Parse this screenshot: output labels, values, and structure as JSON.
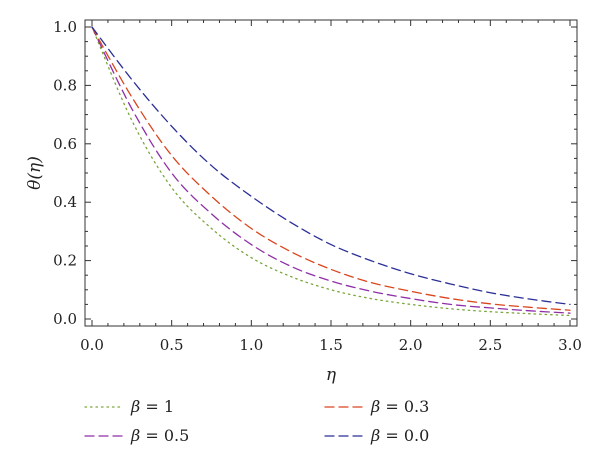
{
  "chart_data": {
    "type": "line",
    "xlabel": "η",
    "ylabel": "θ(η)",
    "xlim": [
      0.0,
      3.0
    ],
    "ylim": [
      0.0,
      1.0
    ],
    "xticks": [
      "0.0",
      "0.5",
      "1.0",
      "1.5",
      "2.0",
      "2.5",
      "3.0"
    ],
    "yticks": [
      "0.0",
      "0.2",
      "0.4",
      "0.6",
      "0.8",
      "1.0"
    ],
    "grid": false,
    "legend_position": "bottom",
    "x": [
      0.0,
      0.25,
      0.5,
      0.75,
      1.0,
      1.25,
      1.5,
      1.75,
      2.0,
      2.25,
      2.5,
      2.75,
      3.0
    ],
    "series": [
      {
        "name": "β = 1",
        "symbol": "β",
        "value_text": " = 1",
        "color": "#7aa63a",
        "dash": "1.5,4",
        "values": [
          1.0,
          0.68,
          0.45,
          0.31,
          0.21,
          0.145,
          0.1,
          0.07,
          0.05,
          0.035,
          0.025,
          0.018,
          0.012
        ]
      },
      {
        "name": "β = 0.5",
        "symbol": "β",
        "value_text": " = 0.5",
        "color": "#8e2fa6",
        "dash": "9,5",
        "values": [
          1.0,
          0.72,
          0.5,
          0.36,
          0.255,
          0.18,
          0.13,
          0.095,
          0.07,
          0.05,
          0.038,
          0.028,
          0.02
        ]
      },
      {
        "name": "β = 0.3",
        "symbol": "β",
        "value_text": " = 0.3",
        "color": "#d9461e",
        "dash": "9,5",
        "values": [
          1.0,
          0.76,
          0.56,
          0.42,
          0.31,
          0.23,
          0.17,
          0.125,
          0.095,
          0.07,
          0.052,
          0.04,
          0.03
        ]
      },
      {
        "name": "β = 0.0",
        "symbol": "β",
        "value_text": " = 0.0",
        "color": "#2a2f96",
        "dash": "9,5",
        "values": [
          1.0,
          0.82,
          0.66,
          0.525,
          0.42,
          0.33,
          0.255,
          0.2,
          0.155,
          0.12,
          0.09,
          0.068,
          0.05
        ]
      }
    ]
  }
}
